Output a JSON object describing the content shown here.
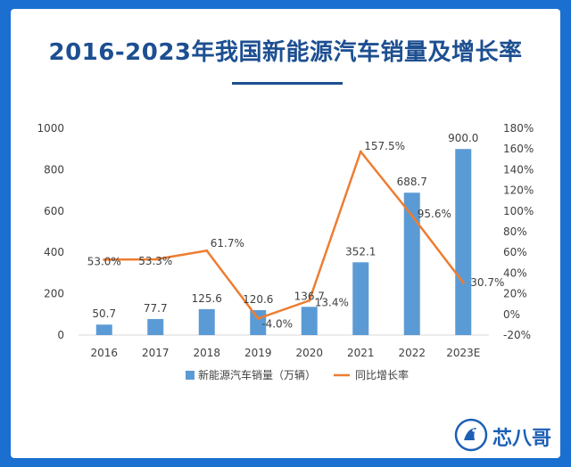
{
  "title": "2016-2023年我国新能源汽车销量及增长率",
  "brand": "芯八哥",
  "chart_data": {
    "type": "bar",
    "title": "2016-2023年我国新能源汽车销量及增长率",
    "categories": [
      "2016",
      "2017",
      "2018",
      "2019",
      "2020",
      "2021",
      "2022",
      "2023E"
    ],
    "series": [
      {
        "name": "新能源汽车销量（万辆）",
        "type": "bar",
        "axis": "left",
        "color": "#5b9bd5",
        "values": [
          50.7,
          77.7,
          125.6,
          120.6,
          136.7,
          352.1,
          688.7,
          900.0
        ],
        "labels": [
          "50.7",
          "77.7",
          "125.6",
          "120.6",
          "136.7",
          "352.1",
          "688.7",
          "900.0"
        ]
      },
      {
        "name": "同比增长率",
        "type": "line",
        "axis": "right",
        "color": "#ed7d31",
        "values": [
          53.0,
          53.3,
          61.7,
          -4.0,
          13.4,
          157.5,
          95.6,
          30.7
        ],
        "labels": [
          "53.0%",
          "53.3%",
          "61.7%",
          "-4.0%",
          "13.4%",
          "157.5%",
          "95.6%",
          "30.7%"
        ]
      }
    ],
    "y_left": {
      "min": 0,
      "max": 1000,
      "ticks": [
        "0",
        "200",
        "400",
        "600",
        "800",
        "1000"
      ]
    },
    "y_right": {
      "min": -20,
      "max": 180,
      "ticks": [
        "-20%",
        "0%",
        "20%",
        "40%",
        "60%",
        "80%",
        "100%",
        "120%",
        "140%",
        "160%",
        "180%"
      ]
    },
    "legend_position": "bottom",
    "grid": false
  }
}
